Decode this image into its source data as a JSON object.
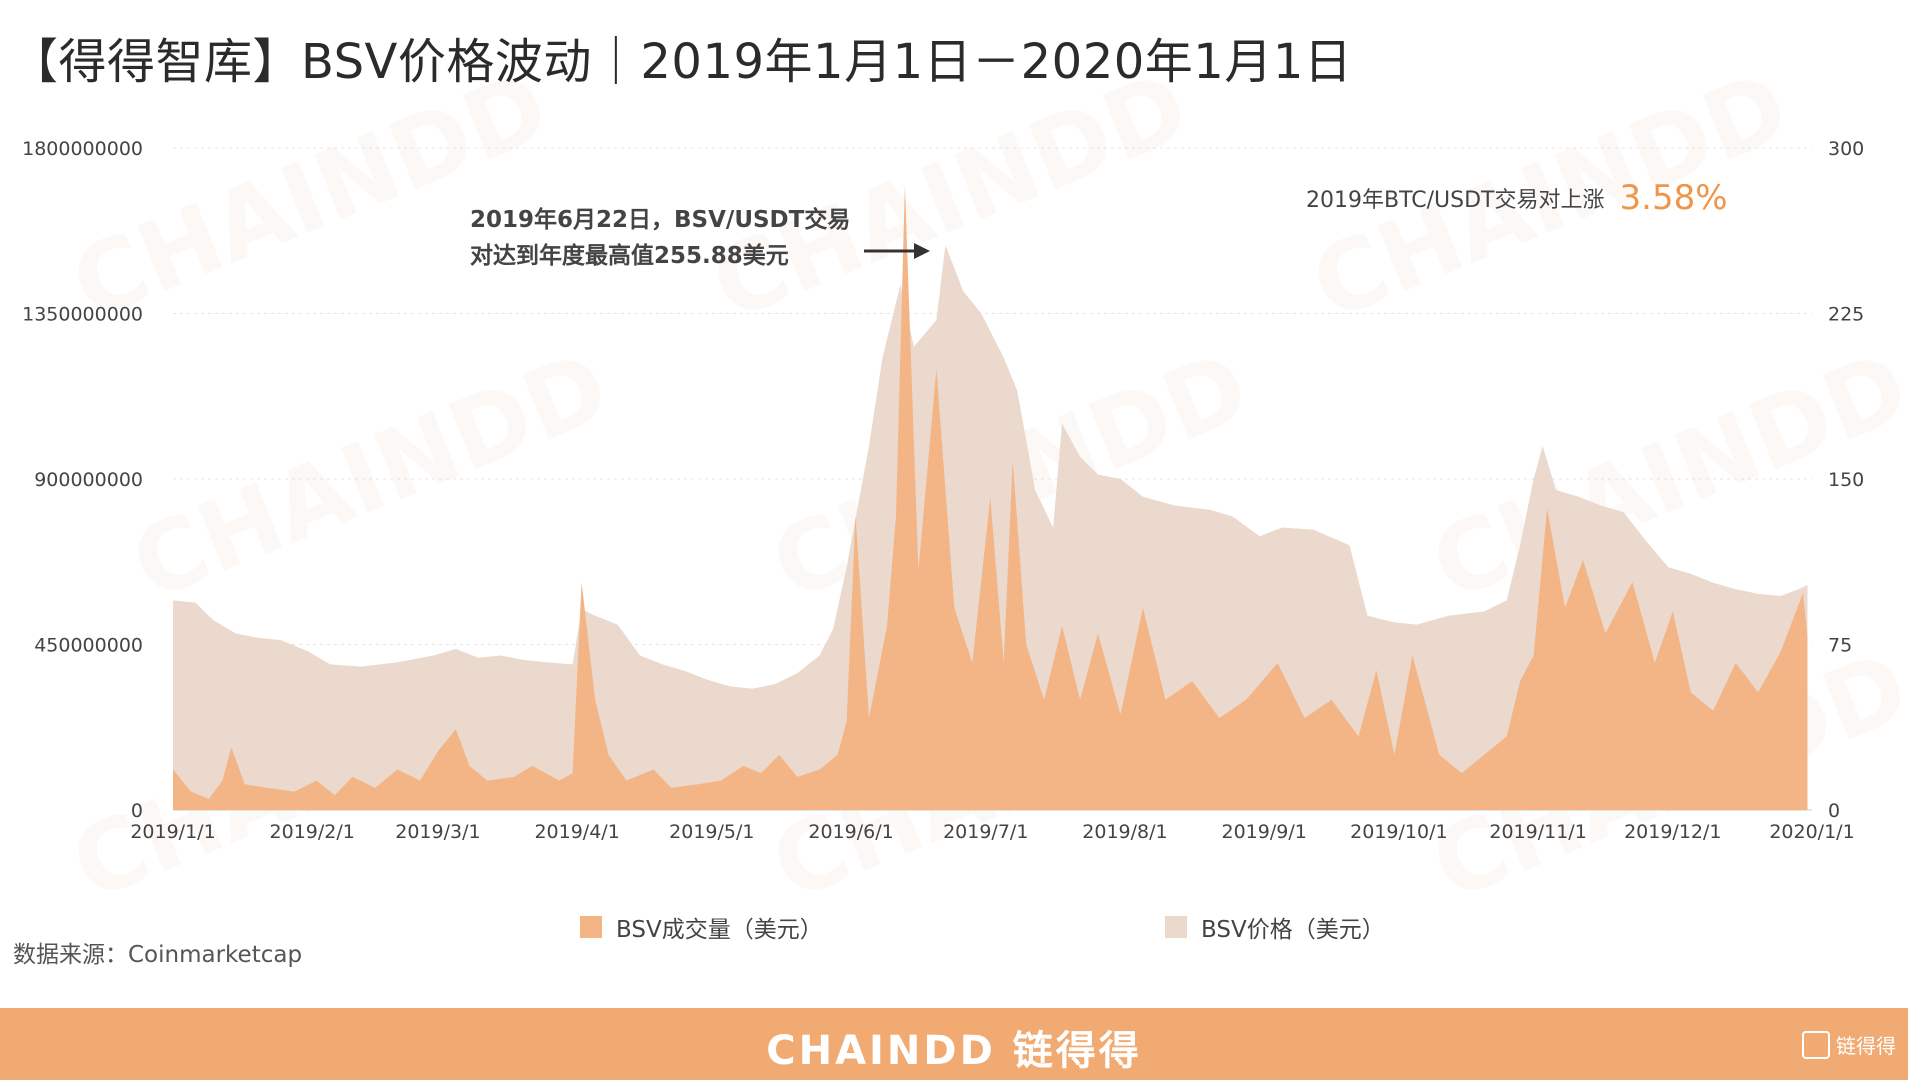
{
  "title": "【得得智库】BSV价格波动｜2019年1月1日－2020年1月1日",
  "annotation": {
    "line1": "2019年6月22日，BSV/USDT交易",
    "line2": "对达到年度最高值255.88美元"
  },
  "stat": {
    "label": "2019年BTC/USDT交易对上涨",
    "value": "3.58%"
  },
  "legend": {
    "volume": "BSV成交量（美元）",
    "price": "BSV价格（美元）"
  },
  "source": "数据来源：Coinmarketcap",
  "footer": {
    "brand": "CHAINDD 链得得",
    "mark": "链得得"
  },
  "watermark": "CHAINDD",
  "colors": {
    "volume": "#f3b585",
    "price": "#ead9cc",
    "accent": "#f0964a",
    "footer": "#f0aa72"
  },
  "chart_data": {
    "type": "area",
    "x_labels": [
      "2019/1/1",
      "2019/2/1",
      "2019/3/1",
      "2019/4/1",
      "2019/5/1",
      "2019/6/1",
      "2019/7/1",
      "2019/8/1",
      "2019/9/1",
      "2019/10/1",
      "2019/11/1",
      "2019/12/1",
      "2020/1/1"
    ],
    "y_left_ticks": [
      "0",
      "450000000",
      "900000000",
      "1350000000",
      "1800000000"
    ],
    "y_right_ticks": [
      "0",
      "75",
      "150",
      "225",
      "300"
    ],
    "ylim_left": [
      0,
      1800000000
    ],
    "ylim_right": [
      0,
      300
    ],
    "series": [
      {
        "name": "BSV价格（美元）",
        "axis": "right",
        "points": [
          [
            "2019-01-01",
            95
          ],
          [
            "2019-01-06",
            94
          ],
          [
            "2019-01-10",
            86
          ],
          [
            "2019-01-15",
            80
          ],
          [
            "2019-01-20",
            78
          ],
          [
            "2019-01-25",
            77
          ],
          [
            "2019-01-31",
            72
          ],
          [
            "2019-02-05",
            66
          ],
          [
            "2019-02-12",
            65
          ],
          [
            "2019-02-20",
            67
          ],
          [
            "2019-02-28",
            70
          ],
          [
            "2019-03-05",
            73
          ],
          [
            "2019-03-10",
            69
          ],
          [
            "2019-03-15",
            70
          ],
          [
            "2019-03-20",
            68
          ],
          [
            "2019-03-25",
            67
          ],
          [
            "2019-03-31",
            66
          ],
          [
            "2019-04-02",
            91
          ],
          [
            "2019-04-05",
            88
          ],
          [
            "2019-04-10",
            84
          ],
          [
            "2019-04-15",
            70
          ],
          [
            "2019-04-20",
            66
          ],
          [
            "2019-04-25",
            63
          ],
          [
            "2019-04-30",
            59
          ],
          [
            "2019-05-05",
            56
          ],
          [
            "2019-05-10",
            55
          ],
          [
            "2019-05-15",
            57
          ],
          [
            "2019-05-20",
            62
          ],
          [
            "2019-05-25",
            70
          ],
          [
            "2019-05-28",
            82
          ],
          [
            "2019-05-31",
            110
          ],
          [
            "2019-06-05",
            165
          ],
          [
            "2019-06-08",
            205
          ],
          [
            "2019-06-12",
            238
          ],
          [
            "2019-06-15",
            210
          ],
          [
            "2019-06-20",
            222
          ],
          [
            "2019-06-22",
            256
          ],
          [
            "2019-06-26",
            235
          ],
          [
            "2019-06-30",
            225
          ],
          [
            "2019-07-05",
            205
          ],
          [
            "2019-07-08",
            190
          ],
          [
            "2019-07-12",
            145
          ],
          [
            "2019-07-16",
            128
          ],
          [
            "2019-07-18",
            175
          ],
          [
            "2019-07-22",
            160
          ],
          [
            "2019-07-26",
            152
          ],
          [
            "2019-07-31",
            150
          ],
          [
            "2019-08-05",
            142
          ],
          [
            "2019-08-12",
            138
          ],
          [
            "2019-08-20",
            136
          ],
          [
            "2019-08-25",
            133
          ],
          [
            "2019-08-31",
            124
          ],
          [
            "2019-09-05",
            128
          ],
          [
            "2019-09-12",
            127
          ],
          [
            "2019-09-20",
            120
          ],
          [
            "2019-09-24",
            88
          ],
          [
            "2019-09-30",
            85
          ],
          [
            "2019-10-05",
            84
          ],
          [
            "2019-10-12",
            88
          ],
          [
            "2019-10-20",
            90
          ],
          [
            "2019-10-25",
            95
          ],
          [
            "2019-10-28",
            120
          ],
          [
            "2019-10-31",
            150
          ],
          [
            "2019-11-02",
            165
          ],
          [
            "2019-11-05",
            145
          ],
          [
            "2019-11-10",
            142
          ],
          [
            "2019-11-15",
            138
          ],
          [
            "2019-11-20",
            135
          ],
          [
            "2019-11-25",
            122
          ],
          [
            "2019-11-30",
            110
          ],
          [
            "2019-12-05",
            107
          ],
          [
            "2019-12-10",
            103
          ],
          [
            "2019-12-15",
            100
          ],
          [
            "2019-12-20",
            98
          ],
          [
            "2019-12-25",
            97
          ],
          [
            "2019-12-29",
            100
          ],
          [
            "2019-12-31",
            102
          ]
        ]
      },
      {
        "name": "BSV成交量（美元）",
        "axis": "left",
        "points": [
          [
            "2019-01-01",
            110000000
          ],
          [
            "2019-01-05",
            50000000
          ],
          [
            "2019-01-09",
            30000000
          ],
          [
            "2019-01-12",
            80000000
          ],
          [
            "2019-01-14",
            170000000
          ],
          [
            "2019-01-17",
            70000000
          ],
          [
            "2019-01-22",
            60000000
          ],
          [
            "2019-01-28",
            50000000
          ],
          [
            "2019-02-02",
            80000000
          ],
          [
            "2019-02-06",
            40000000
          ],
          [
            "2019-02-10",
            90000000
          ],
          [
            "2019-02-15",
            60000000
          ],
          [
            "2019-02-20",
            110000000
          ],
          [
            "2019-02-25",
            80000000
          ],
          [
            "2019-03-01",
            160000000
          ],
          [
            "2019-03-05",
            220000000
          ],
          [
            "2019-03-08",
            120000000
          ],
          [
            "2019-03-12",
            80000000
          ],
          [
            "2019-03-18",
            90000000
          ],
          [
            "2019-03-22",
            120000000
          ],
          [
            "2019-03-28",
            80000000
          ],
          [
            "2019-03-31",
            100000000
          ],
          [
            "2019-04-02",
            620000000
          ],
          [
            "2019-04-05",
            300000000
          ],
          [
            "2019-04-08",
            150000000
          ],
          [
            "2019-04-12",
            80000000
          ],
          [
            "2019-04-18",
            110000000
          ],
          [
            "2019-04-22",
            60000000
          ],
          [
            "2019-04-28",
            70000000
          ],
          [
            "2019-05-03",
            80000000
          ],
          [
            "2019-05-08",
            120000000
          ],
          [
            "2019-05-12",
            100000000
          ],
          [
            "2019-05-16",
            150000000
          ],
          [
            "2019-05-20",
            90000000
          ],
          [
            "2019-05-25",
            110000000
          ],
          [
            "2019-05-29",
            150000000
          ],
          [
            "2019-05-31",
            240000000
          ],
          [
            "2019-06-02",
            800000000
          ],
          [
            "2019-06-05",
            250000000
          ],
          [
            "2019-06-09",
            500000000
          ],
          [
            "2019-06-11",
            800000000
          ],
          [
            "2019-06-13",
            1700000000
          ],
          [
            "2019-06-16",
            650000000
          ],
          [
            "2019-06-20",
            1200000000
          ],
          [
            "2019-06-24",
            550000000
          ],
          [
            "2019-06-28",
            400000000
          ],
          [
            "2019-07-02",
            850000000
          ],
          [
            "2019-07-05",
            400000000
          ],
          [
            "2019-07-07",
            950000000
          ],
          [
            "2019-07-10",
            450000000
          ],
          [
            "2019-07-14",
            300000000
          ],
          [
            "2019-07-18",
            500000000
          ],
          [
            "2019-07-22",
            300000000
          ],
          [
            "2019-07-26",
            480000000
          ],
          [
            "2019-07-31",
            260000000
          ],
          [
            "2019-08-05",
            550000000
          ],
          [
            "2019-08-10",
            300000000
          ],
          [
            "2019-08-16",
            350000000
          ],
          [
            "2019-08-22",
            250000000
          ],
          [
            "2019-08-28",
            300000000
          ],
          [
            "2019-09-04",
            400000000
          ],
          [
            "2019-09-10",
            250000000
          ],
          [
            "2019-09-16",
            300000000
          ],
          [
            "2019-09-22",
            200000000
          ],
          [
            "2019-09-26",
            380000000
          ],
          [
            "2019-09-30",
            150000000
          ],
          [
            "2019-10-04",
            420000000
          ],
          [
            "2019-10-10",
            150000000
          ],
          [
            "2019-10-15",
            100000000
          ],
          [
            "2019-10-20",
            150000000
          ],
          [
            "2019-10-25",
            200000000
          ],
          [
            "2019-10-28",
            350000000
          ],
          [
            "2019-10-31",
            420000000
          ],
          [
            "2019-11-03",
            820000000
          ],
          [
            "2019-11-07",
            550000000
          ],
          [
            "2019-11-11",
            680000000
          ],
          [
            "2019-11-16",
            480000000
          ],
          [
            "2019-11-22",
            620000000
          ],
          [
            "2019-11-27",
            400000000
          ],
          [
            "2019-12-01",
            540000000
          ],
          [
            "2019-12-05",
            320000000
          ],
          [
            "2019-12-10",
            270000000
          ],
          [
            "2019-12-15",
            400000000
          ],
          [
            "2019-12-20",
            320000000
          ],
          [
            "2019-12-25",
            430000000
          ],
          [
            "2019-12-30",
            590000000
          ],
          [
            "2019-12-31",
            470000000
          ]
        ]
      }
    ]
  }
}
